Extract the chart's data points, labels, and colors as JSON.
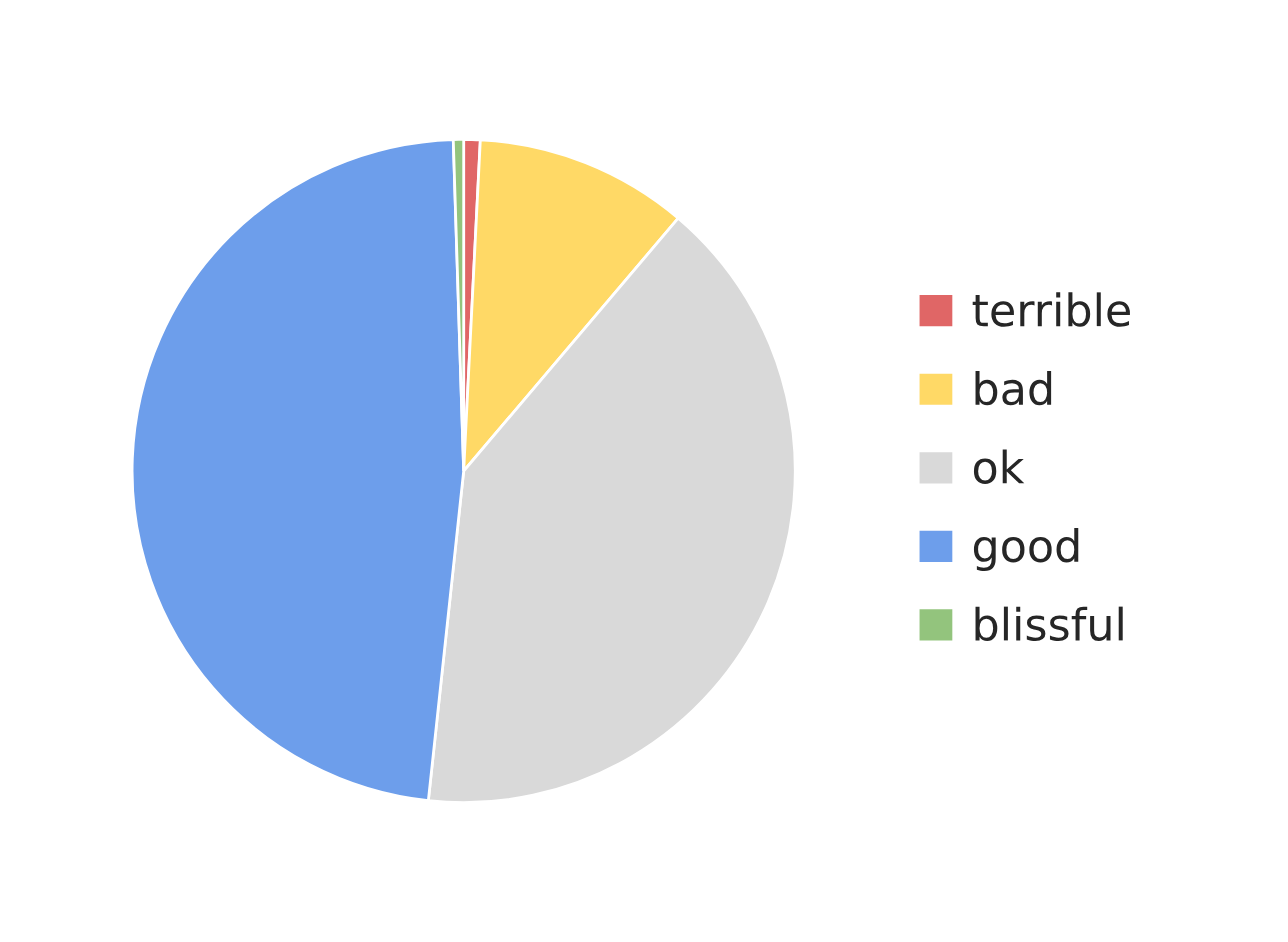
{
  "chart_data": {
    "type": "pie",
    "categories": [
      "terrible",
      "bad",
      "ok",
      "good",
      "blissful"
    ],
    "values": [
      0.8,
      10.4,
      40.5,
      47.8,
      0.5
    ],
    "colors": [
      "#e06666",
      "#ffd966",
      "#d9d9d9",
      "#6d9eeb",
      "#93c47d"
    ],
    "legend": "right"
  }
}
